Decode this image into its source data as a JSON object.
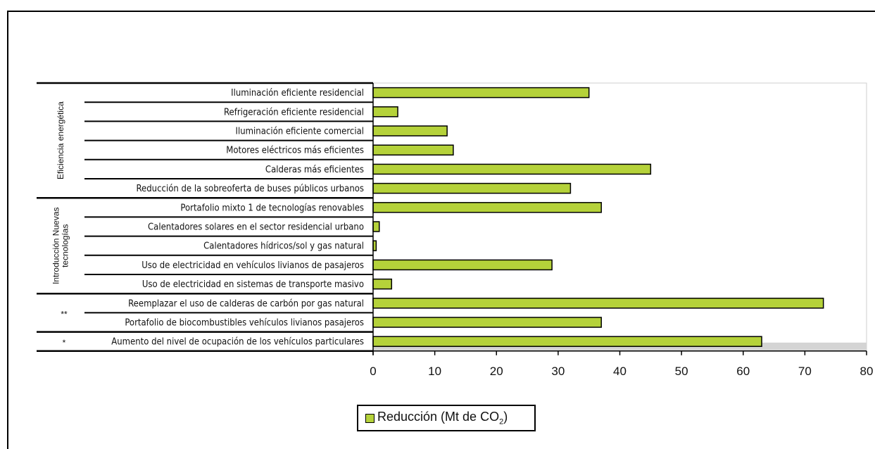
{
  "chart_data": {
    "type": "bar",
    "orientation": "horizontal",
    "categories": [
      "Iluminación eficiente residencial",
      "Refrigeración eficiente residencial",
      "Iluminación eficiente comercial",
      "Motores eléctricos más eficientes",
      "Calderas más eficientes",
      "Reducción de la sobreoferta de buses públicos urbanos",
      "Portafolio mixto 1 de tecnologías renovables",
      "Calentadores solares en el sector residencial urbano",
      "Calentadores hídricos/sol y gas natural",
      "Uso de electricidad en vehículos livianos de pasajeros",
      "Uso de electricidad en sistemas de transporte masivo",
      "Reemplazar el uso de calderas de carbón por gas natural",
      "Portafolio de biocombustibles vehículos livianos pasajeros",
      "Aumento del nivel de ocupación de los vehículos particulares"
    ],
    "series": [
      {
        "name": "Reducción (Mt de CO2)",
        "values": [
          35,
          4,
          12,
          13,
          45,
          32,
          37,
          1,
          0.5,
          29,
          3,
          73,
          37,
          63
        ]
      }
    ],
    "groups": [
      {
        "label_lines": [
          "Eficiencia energética"
        ],
        "start": 0,
        "end": 5
      },
      {
        "label_lines": [
          "Introducción Nuevas",
          "tecnologías"
        ],
        "start": 6,
        "end": 10
      },
      {
        "label_lines": [
          "**"
        ],
        "start": 11,
        "end": 12
      },
      {
        "label_lines": [
          "*"
        ],
        "start": 13,
        "end": 13
      }
    ],
    "xlim": [
      0,
      80
    ],
    "xticks": [
      0,
      10,
      20,
      30,
      40,
      50,
      60,
      70,
      80
    ],
    "title": "",
    "xlabel": "",
    "ylabel": "",
    "grid": false,
    "legend_position": "bottom",
    "colors": {
      "bar": "#b5d23a",
      "bar_border": "#000000",
      "floor": "#d4d4d4"
    }
  },
  "legend": {
    "text": "Reducción (Mt de CO",
    "subscript": "2",
    "suffix": ")"
  }
}
